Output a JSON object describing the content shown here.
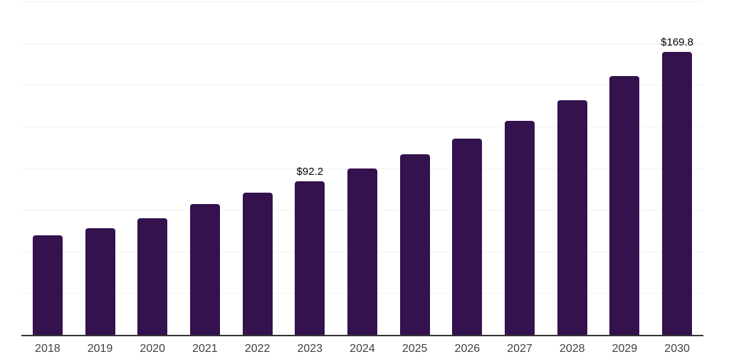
{
  "chart_data": {
    "type": "bar",
    "title": "",
    "xlabel": "",
    "ylabel": "",
    "categories": [
      "2018",
      "2019",
      "2020",
      "2021",
      "2022",
      "2023",
      "2024",
      "2025",
      "2026",
      "2027",
      "2028",
      "2029",
      "2030"
    ],
    "values": [
      59.8,
      64.1,
      69.8,
      78.3,
      85.2,
      92.2,
      99.8,
      108.3,
      117.8,
      128.5,
      140.8,
      155.2,
      169.8
    ],
    "value_labels": {
      "2023": "$92.2",
      "2030": "$169.8"
    },
    "ylim": [
      0,
      200
    ],
    "grid_step": 25,
    "grid": true,
    "legend": "none",
    "colors": {
      "bar": "#33124e",
      "axis_line": "#333333",
      "gridline": "#f2f2f2",
      "tick_label": "#404040",
      "value_label": "#000000",
      "background": "#ffffff"
    }
  }
}
